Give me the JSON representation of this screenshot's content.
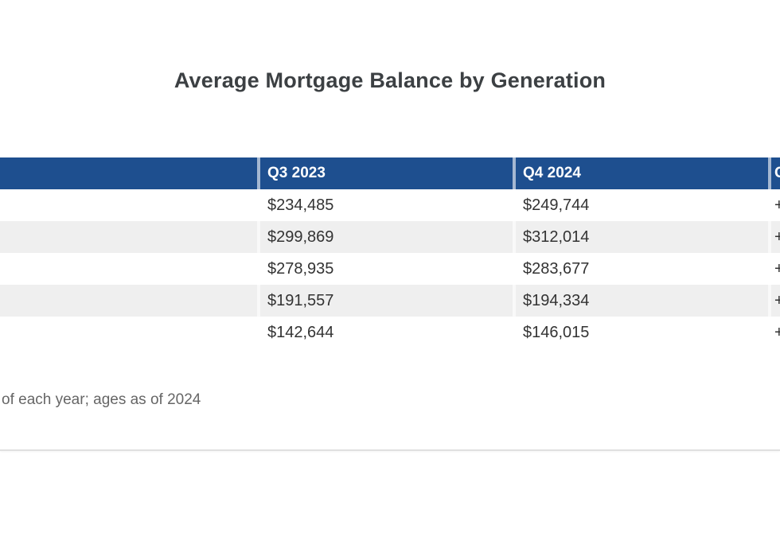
{
  "chart_data": {
    "type": "table",
    "title": "Average Mortgage Balance by Generation",
    "columns": [
      "",
      "Q3 2023",
      "Q4 2024",
      "C"
    ],
    "rows": [
      [
        "",
        "$234,485",
        "$249,744",
        "+"
      ],
      [
        "",
        "$299,869",
        "$312,014",
        "+"
      ],
      [
        "",
        "$278,935",
        "$283,677",
        "+"
      ],
      [
        "",
        "$191,557",
        "$194,334",
        "+"
      ],
      [
        "",
        "$142,644",
        "$146,015",
        "+"
      ]
    ],
    "footnote": "of each year; ages as of 2024",
    "layout_hints": {
      "row_label_column_cut_off_left": true,
      "last_column_cut_off_right": true,
      "alternating_row_shading": true
    }
  },
  "colors": {
    "header_bg": "#1e4f8f",
    "header_text": "#ffffff",
    "row_alt_bg": "#efefef",
    "body_text": "#333333",
    "title_text": "#3c4043",
    "footnote_text": "#666666",
    "divider": "#e0e0e0"
  }
}
